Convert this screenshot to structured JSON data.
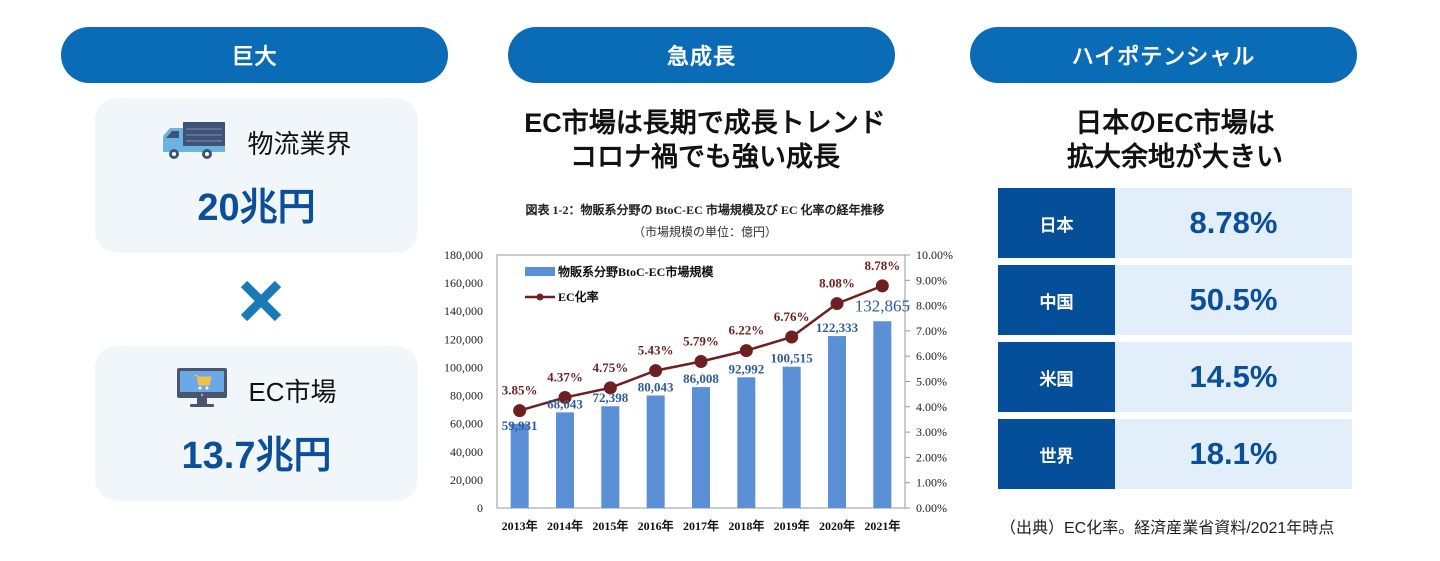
{
  "columns": [
    {
      "pill_label": "巨大",
      "cards": [
        {
          "icon": "truck-icon",
          "label": "物流業界",
          "value": "20兆円"
        },
        {
          "icon": "monitor-cart-icon",
          "label": "EC市場",
          "value": "13.7兆円"
        }
      ],
      "operator_icon": "multiply-icon"
    },
    {
      "pill_label": "急成長",
      "headline_line1": "EC市場は長期で成長トレンド",
      "headline_line2": "コロナ禍でも強い成長"
    },
    {
      "pill_label": "ハイポテンシャル",
      "headline_line1": "日本のEC市場は",
      "headline_line2": "拡大余地が大きい",
      "rates": [
        {
          "country": "日本",
          "value": "8.78%"
        },
        {
          "country": "中国",
          "value": "50.5%"
        },
        {
          "country": "米国",
          "value": "14.5%"
        },
        {
          "country": "世界",
          "value": "18.1%"
        }
      ],
      "source_note": "（出典）EC化率。経済産業省資料/2021年時点"
    }
  ],
  "colors": {
    "accent": "#0a6cb6",
    "dark_blue": "#054f9a",
    "value_blue": "#0b4f99",
    "card_bg": "#f1f6fb",
    "rate_bg": "#e2eef9",
    "bar": "#5b8fd6",
    "line": "#6e1f1f"
  },
  "chart_data": {
    "type": "bar",
    "title": "図表 1-2：物販系分野の BtoC-EC 市場規模及び EC 化率の経年推移",
    "subtitle": "（市場規模の単位：億円）",
    "categories": [
      "2013年",
      "2014年",
      "2015年",
      "2016年",
      "2017年",
      "2018年",
      "2019年",
      "2020年",
      "2021年"
    ],
    "series": [
      {
        "name": "物販系分野BtoC-EC市場規模",
        "type": "bar",
        "axis": "left",
        "values": [
          59931,
          68043,
          72398,
          80043,
          86008,
          92992,
          100515,
          122333,
          132865
        ],
        "labels": [
          "59,931",
          "68,043",
          "72,398",
          "80,043",
          "86,008",
          "92,992",
          "100,515",
          "122,333",
          "132,865"
        ]
      },
      {
        "name": "EC化率",
        "type": "line",
        "axis": "right",
        "values": [
          3.85,
          4.37,
          4.75,
          5.43,
          5.79,
          6.22,
          6.76,
          8.08,
          8.78
        ],
        "labels": [
          "3.85%",
          "4.37%",
          "4.75%",
          "5.43%",
          "5.79%",
          "6.22%",
          "6.76%",
          "8.08%",
          "8.78%"
        ]
      }
    ],
    "y_left": {
      "range": [
        0,
        180000
      ],
      "ticks": [
        "0",
        "20,000",
        "40,000",
        "60,000",
        "80,000",
        "100,000",
        "120,000",
        "140,000",
        "160,000",
        "180,000"
      ]
    },
    "y_right": {
      "range": [
        0,
        10
      ],
      "ticks": [
        "0.00%",
        "1.00%",
        "2.00%",
        "3.00%",
        "4.00%",
        "5.00%",
        "6.00%",
        "7.00%",
        "8.00%",
        "9.00%",
        "10.00%"
      ]
    },
    "legend_position": "top-left",
    "grid": false
  }
}
